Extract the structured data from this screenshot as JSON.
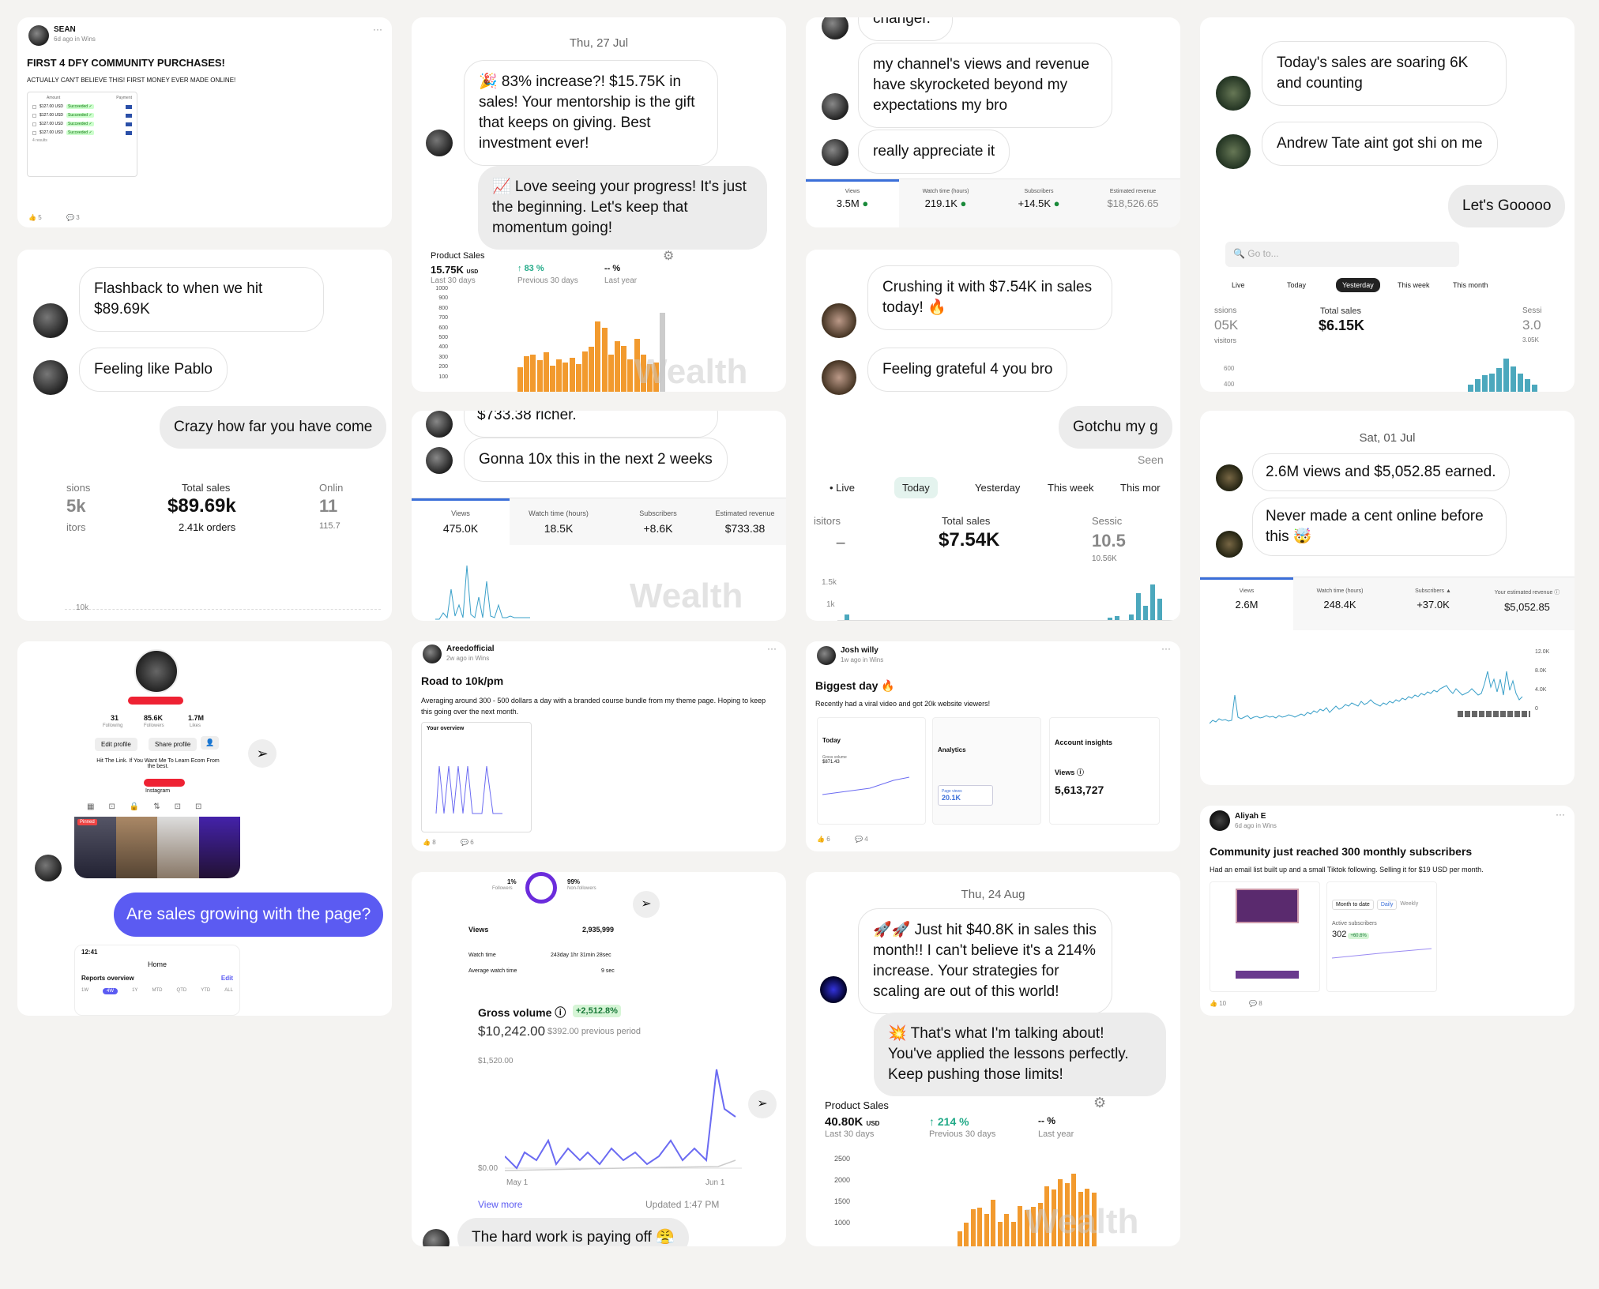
{
  "post1": {
    "author": "SEAN",
    "meta": "6d ago in Wins",
    "title": "FIRST 4 DFY COMMUNITY PURCHASES!",
    "sub": "ACTUALLY CAN'T BELIEVE THIS! FIRST MONEY EVER MADE ONLINE!",
    "col_amount": "Amount",
    "col_payment": "Payment",
    "rows": [
      "$127.00",
      "$127.00",
      "$127.00",
      "$127.00"
    ],
    "currency": "USD",
    "status": "Succeeded",
    "results": "4 results",
    "likes": "5",
    "comments": "3",
    "menu": "···"
  },
  "chat1": {
    "b1": "Flashback to when we hit $89.69K",
    "b2": "Feeling like Pablo",
    "b3": "Crazy how far you have come",
    "sessions": "sions",
    "sessions_v": "5k",
    "visitors": "itors",
    "total_sales": "Total sales",
    "total_v": "$89.69k",
    "orders": "2.41k orders",
    "online": "Onlin",
    "online_v": "11",
    "online_sub": "115.7",
    "axis": "10k"
  },
  "profile": {
    "following": "31",
    "following_l": "Following",
    "followers": "85.6K",
    "followers_l": "Followers",
    "likes": "1.7M",
    "likes_l": "Likes",
    "edit": "Edit profile",
    "share": "Share profile",
    "bio": "Hit The Link. If You Want Me To Learn Ecom From the best.",
    "ig": "Instagram",
    "pinned": "Pinned",
    "question": "Are sales growing with the page?",
    "time": "12:41",
    "home": "Home",
    "reports": "Reports overview",
    "edit_link": "Edit",
    "ranges": [
      "1W",
      "4W",
      "1Y",
      "MTD",
      "QTD",
      "YTD",
      "ALL"
    ]
  },
  "chat2": {
    "date": "Thu, 27 Jul",
    "b1": "🎉 83% increase?! $15.75K in sales! Your mentorship is the gift that keeps on giving. Best investment ever!",
    "b2": "📈 Love seeing your progress! It's just the beginning. Let's keep that momentum going!",
    "ps": "Product Sales",
    "ps_v": "15.75K",
    "ps_usd": "USD",
    "ps_l": "Last 30 days",
    "ps_pct": "83",
    "ps_pl": "Previous 30 days",
    "ps_dash": "-- %",
    "ps_ly": "Last year",
    "ticks": [
      "1000",
      "900",
      "800",
      "700",
      "600",
      "500",
      "400",
      "300",
      "200",
      "100"
    ]
  },
  "chat3": {
    "b0": "$733.38 richer.",
    "b1": "Gonna 10x this in the next 2 weeks",
    "views": "Views",
    "views_v": "475.0K",
    "watch": "Watch time (hours)",
    "watch_v": "18.5K",
    "subs": "Subscribers",
    "subs_v": "+8.6K",
    "rev": "Estimated revenue",
    "rev_v": "$733.38"
  },
  "post2": {
    "author": "Areedofficial",
    "meta": "2w ago in Wins",
    "title": "Road to 10k/pm",
    "sub": "Averaging around 300 - 500 dollars a day with a branded course bundle from my theme page. Hoping to keep this going over the next month.",
    "overview": "Your overview",
    "likes": "8",
    "comments": "6",
    "menu": "···"
  },
  "stats": {
    "followers": "1%",
    "followers_l": "Followers",
    "non": "99%",
    "non_l": "Non-followers",
    "views": "Views",
    "views_v": "2,935,999",
    "watch": "Watch time",
    "watch_v": "243day 1hr 31min 28sec",
    "avg": "Average watch time",
    "avg_v": "9 sec",
    "gross": "Gross volume",
    "gross_pct": "+2,512.8%",
    "gross_v": "$10,242.00",
    "prev": "$392.00 previous period",
    "y_top": "$1,520.00",
    "y_bot": "$0.00",
    "x1": "May 1",
    "x2": "Jun 1",
    "view_more": "View more",
    "updated": "Updated 1:47 PM",
    "b1": "The hard work is paying off 😤"
  },
  "chat4": {
    "b0": "changer.",
    "b1": "my channel's views and revenue have skyrocketed beyond my expectations my bro",
    "b2": "really appreciate it",
    "views": "Views",
    "views_v": "3.5M",
    "watch": "Watch time (hours)",
    "watch_v": "219.1K",
    "subs": "Subscribers",
    "subs_v": "+14.5K",
    "rev": "Estimated revenue",
    "rev_v": "$18,526.65"
  },
  "chat5": {
    "b1": "Crushing it with $7.54K in sales today! 🔥",
    "b2": "Feeling grateful 4 you bro",
    "b3": "Gotchu my g",
    "seen": "Seen",
    "tabs": [
      "Live",
      "Today",
      "Yesterday",
      "This week",
      "This mor"
    ],
    "sessions": "isitors",
    "total": "Total sales",
    "total_v": "$7.54K",
    "sess": "Sessic",
    "sess_v": "10.5",
    "sess_sub": "10.56K",
    "y1": "1.5k",
    "y2": "1k"
  },
  "post3": {
    "author": "Josh willy",
    "meta": "1w ago in Wins",
    "title": "Biggest day 🔥",
    "sub": "Recently had a viral video and got 20k website viewers!",
    "today": "Today",
    "gross": "Gross volume",
    "gross_v": "$871.43",
    "analytics": "Analytics",
    "page_views": "Page views",
    "pv": "20.1K",
    "insights": "Account insights",
    "views": "Views",
    "views_v": "5,613,727",
    "likes": "6",
    "comments": "4",
    "menu": "···"
  },
  "chat6": {
    "date": "Thu, 24 Aug",
    "b1": "🚀🚀 Just hit $40.8K in sales this month!! I can't believe it's a 214% increase. Your strategies for scaling are out of this world!",
    "b2": "💥 That's what I'm talking about! You've applied the lessons perfectly. Keep pushing those limits!",
    "ps": "Product Sales",
    "ps_v": "40.80K",
    "ps_usd": "USD",
    "ps_l": "Last 30 days",
    "ps_pct": "214",
    "ps_pl": "Previous 30 days",
    "ps_dash": "-- %",
    "ps_ly": "Last year",
    "ticks": [
      "2500",
      "2000",
      "1500",
      "1000"
    ]
  },
  "chat7": {
    "b1": "Today's sales are soaring 6K and counting",
    "b2": "Andrew Tate aint got shi on me",
    "b3": "Let's Gooooo",
    "search": "Go to...",
    "tabs": [
      "Live",
      "Today",
      "Yesterday",
      "This week",
      "This month"
    ],
    "sess": "ssions",
    "sess_v": "05K",
    "vis": "visitors",
    "total": "Total sales",
    "total_v": "$6.15K",
    "s2": "Sessi",
    "s2_v": "3.0",
    "s2_sub": "3.05K",
    "y1": "600",
    "y2": "400"
  },
  "chat8": {
    "date": "Sat, 01 Jul",
    "b1": "2.6M views and $5,052.85 earned.",
    "b2": "Never made a cent online before this 🤯",
    "views": "Views",
    "views_v": "2.6M",
    "watch": "Watch time (hours)",
    "watch_v": "248.4K",
    "subs": "Subscribers",
    "subs_v": "+37.0K",
    "rev": "Your estimated revenue",
    "rev_v": "$5,052.85",
    "y": [
      "12.0K",
      "8.0K",
      "4.0K",
      "0"
    ]
  },
  "post4": {
    "author": "Aliyah E",
    "meta": "6d ago in Wins",
    "title": "Community just reached 300 monthly subscribers",
    "sub": "Had an email list built up and a small Tiktok following. Selling it for $19 USD per month.",
    "mtd": "Month to date",
    "daily": "Daily",
    "weekly": "Weekly",
    "active": "Active subscribers",
    "active_v": "302",
    "pct": "+60.6%",
    "likes": "10",
    "comments": "8",
    "menu": "···"
  },
  "watermark": "Wealth"
}
